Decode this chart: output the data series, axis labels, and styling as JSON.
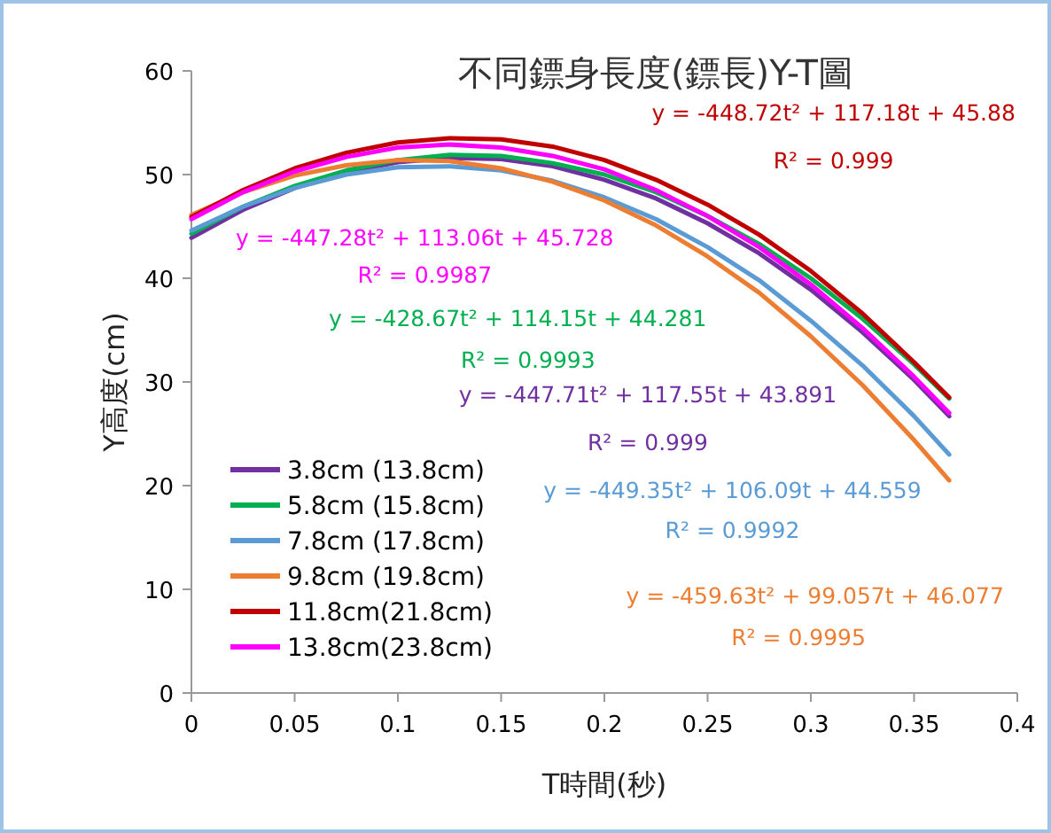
{
  "chart_data": {
    "type": "line",
    "title": "不同鏢身長度(鏢長)Y-T圖",
    "xlabel": "T時間(秒)",
    "ylabel": "Y高度(cm)",
    "x": [
      0,
      0.025,
      0.05,
      0.075,
      0.1,
      0.125,
      0.15,
      0.175,
      0.2,
      0.225,
      0.25,
      0.275,
      0.3,
      0.325,
      0.35,
      0.367
    ],
    "series": [
      {
        "name": "3.8cm (13.8cm)",
        "color": "#7030a0",
        "values": [
          43.9,
          46.6,
          48.7,
          50.2,
          51.2,
          51.6,
          51.5,
          50.8,
          49.5,
          47.7,
          45.3,
          42.4,
          38.9,
          34.8,
          30.2,
          26.7
        ]
      },
      {
        "name": "5.8cm (15.8cm)",
        "color": "#00b050",
        "values": [
          44.3,
          46.9,
          48.9,
          50.4,
          51.4,
          51.9,
          51.8,
          51.1,
          50.0,
          48.3,
          46.0,
          43.3,
          40.0,
          36.1,
          31.7,
          28.4
        ]
      },
      {
        "name": "7.8cm (17.8cm)",
        "color": "#5b9bd5",
        "values": [
          44.6,
          46.9,
          48.7,
          50.0,
          50.7,
          50.8,
          50.4,
          49.4,
          47.8,
          45.7,
          43.0,
          39.8,
          35.9,
          31.6,
          26.7,
          23.0
        ]
      },
      {
        "name": "9.8cm (19.8cm)",
        "color": "#ed7d31",
        "values": [
          46.1,
          48.3,
          49.9,
          50.9,
          51.4,
          51.3,
          50.6,
          49.3,
          47.5,
          45.1,
          42.1,
          38.6,
          34.4,
          29.7,
          24.4,
          20.5
        ]
      },
      {
        "name": "11.8cm(21.8cm)",
        "color": "#c00000",
        "values": [
          45.9,
          48.5,
          50.6,
          52.1,
          53.1,
          53.5,
          53.4,
          52.7,
          51.4,
          49.5,
          47.1,
          44.2,
          40.7,
          36.6,
          31.9,
          28.5
        ]
      },
      {
        "name": "13.8cm(23.8cm)",
        "color": "#ff00ff",
        "values": [
          45.7,
          48.3,
          50.3,
          51.7,
          52.6,
          52.9,
          52.6,
          51.8,
          50.5,
          48.5,
          46.0,
          43.0,
          39.4,
          35.2,
          30.5,
          27.0
        ]
      }
    ],
    "annotations": [
      "y = -448.72t² + 117.18t + 45.88",
      "R² = 0.999",
      "y = -447.28t² + 113.06t + 45.728",
      "R² = 0.9987",
      "y = -428.67t² + 114.15t + 44.281",
      "R² = 0.9993",
      "y = -447.71t² + 117.55t + 43.891",
      "R² = 0.999",
      "y = -449.35t² + 106.09t + 44.559",
      "R² = 0.9992",
      "y = -459.63t² + 99.057t + 46.077",
      "R² = 0.9995"
    ],
    "xlim": [
      0,
      0.4
    ],
    "xticks": [
      0,
      0.05,
      0.1,
      0.15,
      0.2,
      0.25,
      0.3,
      0.35,
      0.4
    ],
    "ylim": [
      0,
      60
    ],
    "yticks": [
      0,
      10,
      20,
      30,
      40,
      50,
      60
    ],
    "legend": "bottom left",
    "line_style": "solid"
  }
}
